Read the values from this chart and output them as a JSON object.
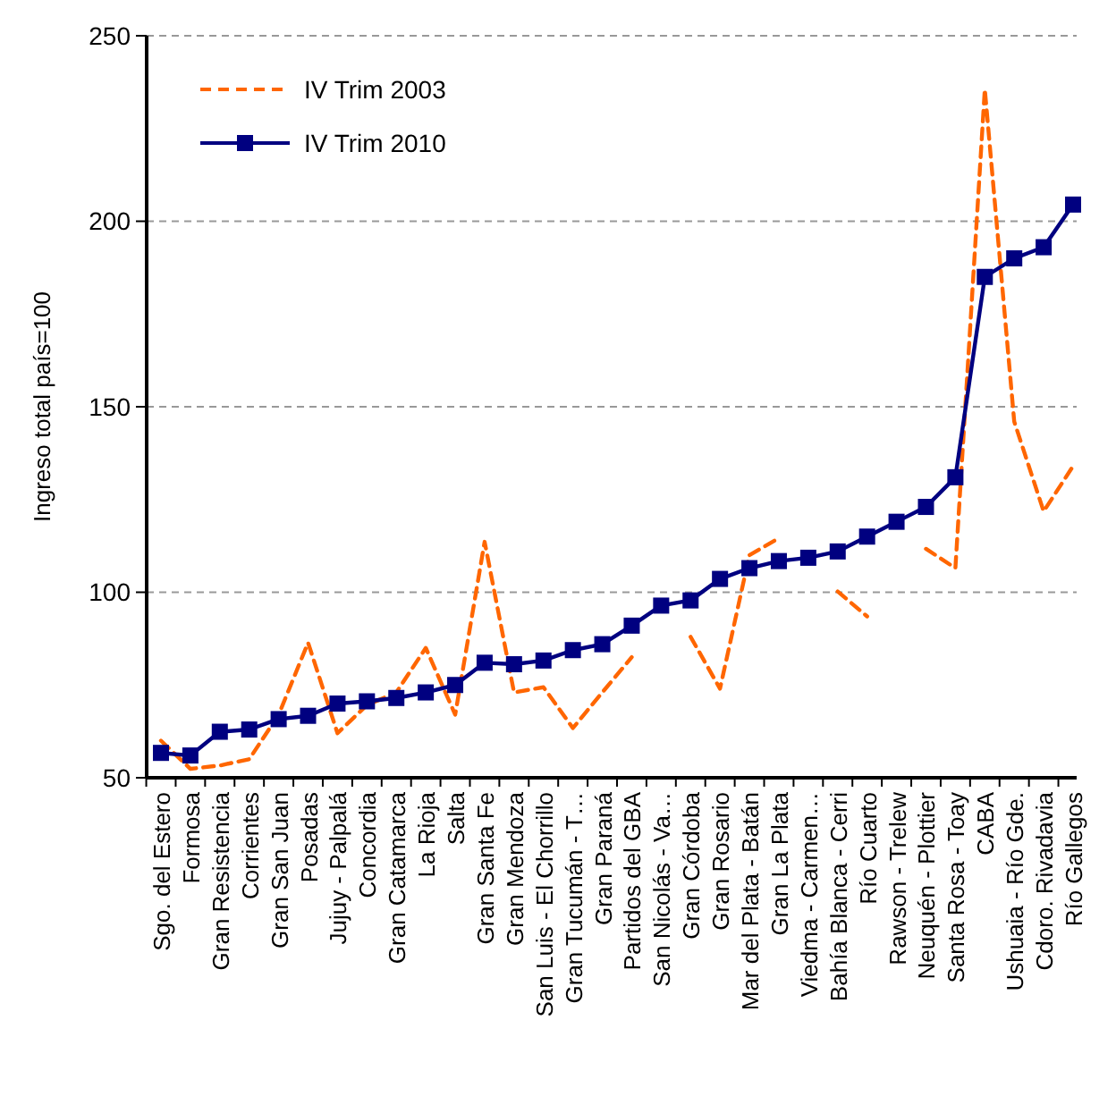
{
  "chart_data": {
    "type": "line",
    "ylabel": "Ingreso total país=100",
    "categories": [
      "Sgo. del Estero",
      "Formosa",
      "Gran Resistencia",
      "Corrientes",
      "Gran San Juan",
      "Posadas",
      "Jujuy - Palpalá",
      "Concordia",
      "Gran Catamarca",
      "La Rioja",
      "Salta",
      "Gran Santa Fe",
      "Gran Mendoza",
      "San Luis - El Chorrillo",
      "Gran Tucumán - T…",
      "Gran Paraná",
      "Partidos del GBA",
      "San Nicolás - Va…",
      "Gran Córdoba",
      "Gran Rosario",
      "Mar del Plata - Batán",
      "Gran La Plata",
      "Viedma - Carmen…",
      "Bahía Blanca - Cerri",
      "Río Cuarto",
      "Rawson - Trelew",
      "Neuquén - Plottier",
      "Santa Rosa - Toay",
      "CABA",
      "Ushuaia - Río Gde.",
      "Cdoro. Rivadavia",
      "Río Gallegos"
    ],
    "series": [
      {
        "name": "IV Trim 2003",
        "color": "#ff6600",
        "marker": "none",
        "line_style": "dashed",
        "values": [
          60,
          52.4,
          53.3,
          55,
          67,
          86.4,
          62,
          69.6,
          73,
          85,
          67,
          113.6,
          73,
          74.4,
          63.4,
          73,
          82.5,
          null,
          88,
          74,
          110,
          114.6,
          null,
          100.2,
          93.5,
          null,
          111.7,
          106.5,
          235.6,
          146,
          121.8,
          134
        ]
      },
      {
        "name": "IV Trim 2010",
        "color": "#000080",
        "marker": "square",
        "line_style": "solid",
        "values": [
          56.7,
          56,
          62.4,
          63,
          65.8,
          66.7,
          70,
          70.6,
          71.5,
          73,
          75,
          81,
          80.6,
          81.6,
          84.4,
          86,
          91,
          96.4,
          97.8,
          103.6,
          106.5,
          108.4,
          109.3,
          111,
          115,
          119,
          123,
          131,
          185,
          190,
          193,
          204.5
        ]
      }
    ],
    "ylim": [
      50,
      250
    ],
    "yticks": [
      50,
      100,
      150,
      200,
      250
    ],
    "grid": "y",
    "legend": "top left"
  }
}
